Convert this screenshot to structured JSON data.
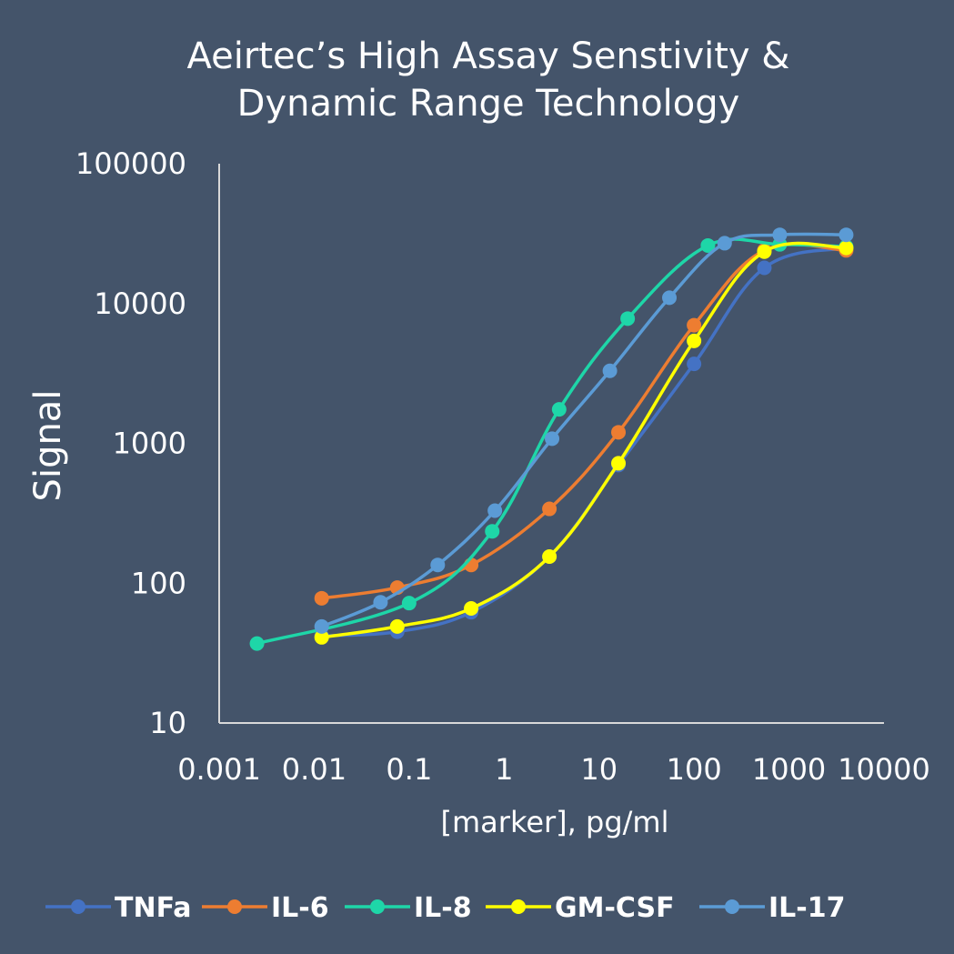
{
  "chart_data": {
    "type": "line",
    "title_lines": [
      "Aeirtec’s High Assay Senstivity &",
      "Dynamic Range Technology"
    ],
    "xlabel": "[marker], pg/ml",
    "ylabel": "Signal",
    "x_scale": "log",
    "y_scale": "log",
    "xlim": [
      0.001,
      10000
    ],
    "ylim": [
      10,
      100000
    ],
    "x_ticks": [
      "0.001",
      "0.01",
      "0.1",
      "1",
      "10",
      "100",
      "1000",
      "10000"
    ],
    "y_ticks": [
      "10",
      "100",
      "1000",
      "10000",
      "100000"
    ],
    "grid": false,
    "legend_position": "bottom",
    "series": [
      {
        "name": "TNFa",
        "color": "#4472c4",
        "points": [
          [
            0.012,
            42
          ],
          [
            0.075,
            45
          ],
          [
            0.45,
            62
          ],
          [
            3.0,
            155
          ],
          [
            16,
            700
          ],
          [
            100,
            3700
          ],
          [
            550,
            18000
          ],
          [
            4000,
            25000
          ]
        ]
      },
      {
        "name": "IL-6",
        "color": "#ed7d31",
        "points": [
          [
            0.012,
            78
          ],
          [
            0.075,
            93
          ],
          [
            0.45,
            135
          ],
          [
            3.0,
            340
          ],
          [
            16,
            1200
          ],
          [
            100,
            7000
          ],
          [
            550,
            24000
          ],
          [
            4000,
            24000
          ]
        ]
      },
      {
        "name": "IL-8",
        "color": "#1ed6a8",
        "points": [
          [
            0.0025,
            37
          ],
          [
            0.1,
            72
          ],
          [
            0.75,
            235
          ],
          [
            3.8,
            1750
          ],
          [
            20,
            7800
          ],
          [
            140,
            26000
          ],
          [
            800,
            26500
          ],
          [
            4000,
            25500
          ]
        ]
      },
      {
        "name": "GM-CSF",
        "color": "#ffff00",
        "points": [
          [
            0.012,
            41
          ],
          [
            0.075,
            49
          ],
          [
            0.45,
            66
          ],
          [
            3.0,
            155
          ],
          [
            16,
            720
          ],
          [
            100,
            5400
          ],
          [
            550,
            23500
          ],
          [
            4000,
            25000
          ]
        ]
      },
      {
        "name": "IL-17",
        "color": "#5b9bd5",
        "points": [
          [
            0.012,
            49
          ],
          [
            0.05,
            73
          ],
          [
            0.2,
            135
          ],
          [
            0.8,
            330
          ],
          [
            3.2,
            1080
          ],
          [
            13,
            3300
          ],
          [
            55,
            11000
          ],
          [
            210,
            27000
          ],
          [
            800,
            31000
          ],
          [
            4000,
            31000
          ]
        ]
      }
    ]
  }
}
